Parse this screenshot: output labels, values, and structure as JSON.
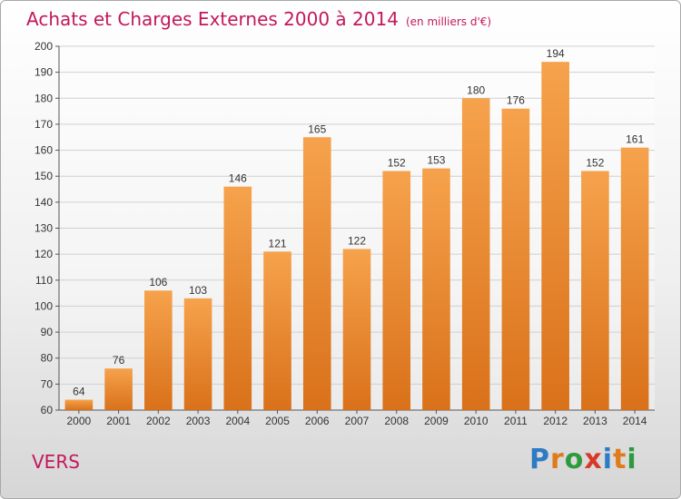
{
  "title": "Achats et Charges Externes 2000 à 2014",
  "subtitle": "(en milliers d'€)",
  "commune": "VERS",
  "logo": {
    "text": "Proxiti",
    "letters": [
      {
        "ch": "P",
        "color": "#2e7bc4"
      },
      {
        "ch": "r",
        "color": "#e07b1c"
      },
      {
        "ch": "o",
        "color": "#2e9a3e"
      },
      {
        "ch": "x",
        "color": "#d83a2a"
      },
      {
        "ch": "i",
        "color": "#2e7bc4"
      },
      {
        "ch": "t",
        "color": "#e07b1c"
      },
      {
        "ch": "i",
        "color": "#2e9a3e"
      }
    ]
  },
  "colors": {
    "title": "#c2185b",
    "bar_top": "#f6a24c",
    "bar_bottom": "#d9711a",
    "grid": "#d0d0d0",
    "axis": "#555555"
  },
  "chart_data": {
    "type": "bar",
    "title": "Achats et Charges Externes 2000 à 2014",
    "subtitle": "(en milliers d'€)",
    "xlabel": "",
    "ylabel": "",
    "categories": [
      "2000",
      "2001",
      "2002",
      "2003",
      "2004",
      "2005",
      "2006",
      "2007",
      "2008",
      "2009",
      "2010",
      "2011",
      "2012",
      "2013",
      "2014"
    ],
    "values": [
      64,
      76,
      106,
      103,
      146,
      121,
      165,
      122,
      152,
      153,
      180,
      176,
      194,
      152,
      161
    ],
    "ylim": [
      60,
      200
    ],
    "yticks": [
      60,
      70,
      80,
      90,
      100,
      110,
      120,
      130,
      140,
      150,
      160,
      170,
      180,
      190,
      200
    ],
    "grid": true,
    "legend": "none"
  }
}
